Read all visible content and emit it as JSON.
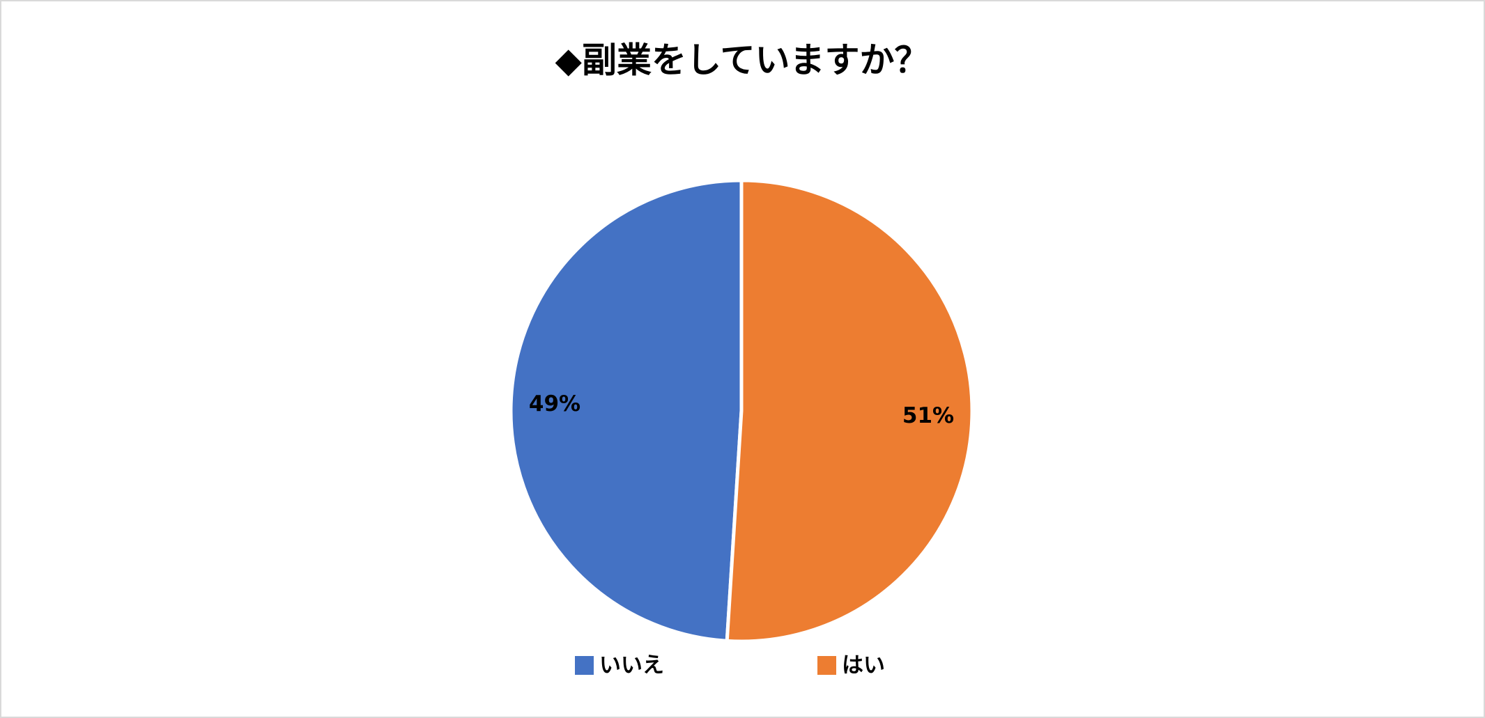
{
  "chart_data": {
    "type": "pie",
    "title": "◆副業をしていますか？",
    "categories": [
      "いいえ",
      "はい"
    ],
    "values": [
      49,
      51
    ],
    "value_labels": [
      "49%",
      "51%"
    ],
    "colors": [
      "#4472c4",
      "#ed7d31"
    ],
    "legend": "bottom"
  }
}
